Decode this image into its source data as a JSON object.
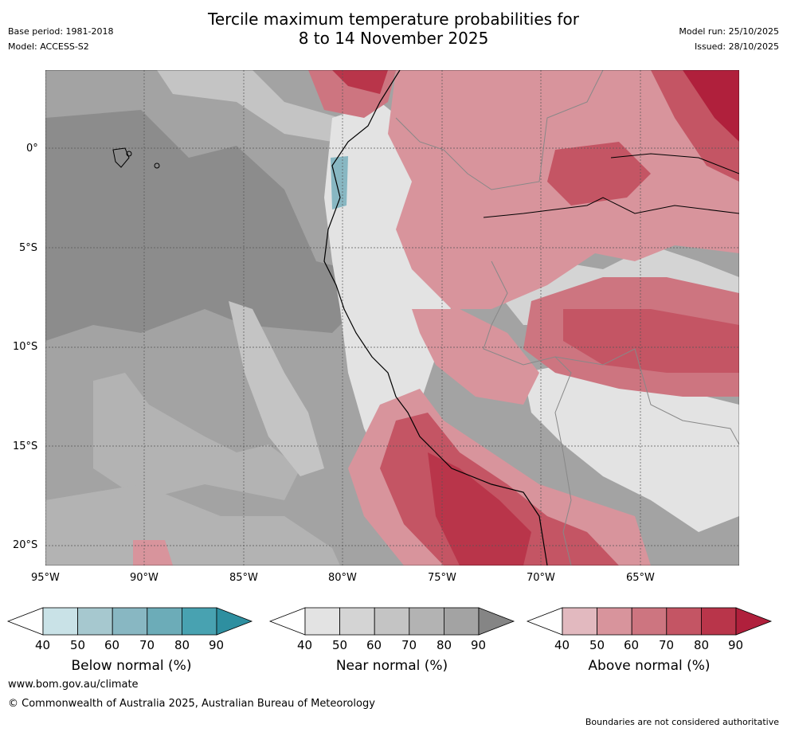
{
  "header": {
    "title_line1": "Tercile maximum temperature probabilities for",
    "title_line2": "8 to 14 November 2025",
    "base_period": "Base period: 1981-2018",
    "model": "Model: ACCESS-S2",
    "model_run": "Model run: 25/10/2025",
    "issued": "Issued: 28/10/2025"
  },
  "axes": {
    "lat_labels": [
      "0°",
      "5°S",
      "10°S",
      "15°S",
      "20°S"
    ],
    "lon_labels": [
      "95°W",
      "90°W",
      "85°W",
      "80°W",
      "75°W",
      "70°W",
      "65°W"
    ]
  },
  "colorbars": [
    {
      "label": "Below normal (%)",
      "ticks": [
        "40",
        "50",
        "60",
        "70",
        "80",
        "90"
      ],
      "colors": [
        "#c9e2e7",
        "#a6c8cf",
        "#88b7c2",
        "#6cacb8",
        "#48a2b1",
        "#2e8fa0"
      ]
    },
    {
      "label": "Near normal (%)",
      "ticks": [
        "40",
        "50",
        "60",
        "70",
        "80",
        "90"
      ],
      "colors": [
        "#e3e3e3",
        "#d4d4d4",
        "#c4c4c4",
        "#b3b3b3",
        "#a3a3a3",
        "#858585"
      ]
    },
    {
      "label": "Above normal (%)",
      "ticks": [
        "40",
        "50",
        "60",
        "70",
        "80",
        "90"
      ],
      "colors": [
        "#e2b9bf",
        "#d8949c",
        "#cd7580",
        "#c45564",
        "#b9354a",
        "#b0203c"
      ]
    }
  ],
  "footer": {
    "website": "www.bom.gov.au/climate",
    "copyright": "© Commonwealth of Australia 2025, Australian Bureau of Meteorology",
    "disclaimer": "Boundaries are not considered authoritative"
  }
}
